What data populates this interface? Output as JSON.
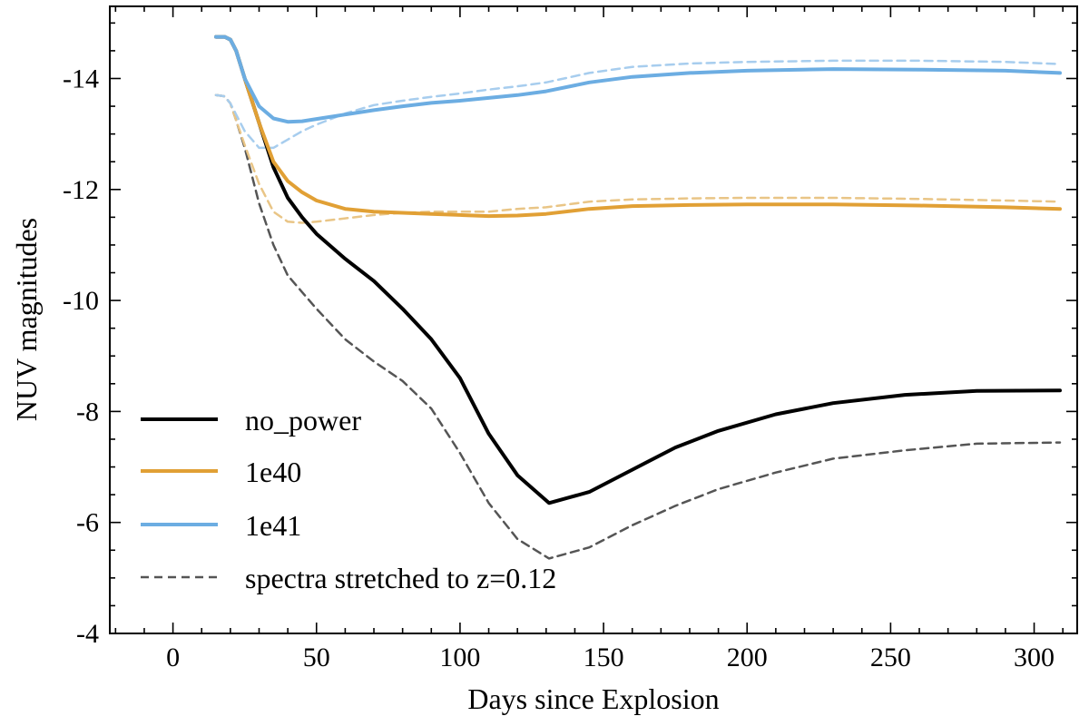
{
  "chart_data": {
    "type": "line",
    "title": "",
    "xlabel": "Days since Explosion",
    "ylabel": "NUV magnitudes",
    "xlim": [
      -22,
      315
    ],
    "ylim": [
      -4,
      -15.3
    ],
    "xticks": [
      0,
      50,
      100,
      150,
      200,
      250,
      300
    ],
    "yticks": [
      -14,
      -12,
      -10,
      -8,
      -6,
      -4
    ],
    "x_minor_step": 10,
    "y_minor_step": 0.5,
    "grid": false,
    "legend": {
      "placement": "bottom-left",
      "entries": [
        {
          "label": "no_power",
          "color": "#000000",
          "style": "solid"
        },
        {
          "label": "1e40",
          "color": "#E1A035",
          "style": "solid"
        },
        {
          "label": "1e41",
          "color": "#6CADE2",
          "style": "solid"
        },
        {
          "label": "spectra stretched to z=0.12",
          "color": "#555555",
          "style": "dashed"
        }
      ]
    },
    "series": [
      {
        "name": "no_power",
        "color": "#000000",
        "style": "solid",
        "x": [
          15,
          18,
          20,
          22,
          25,
          30,
          35,
          40,
          45,
          50,
          60,
          70,
          80,
          90,
          100,
          110,
          120,
          131,
          138,
          145,
          160,
          175,
          190,
          210,
          230,
          255,
          280,
          309
        ],
        "y": [
          -14.75,
          -14.75,
          -14.7,
          -14.5,
          -14.0,
          -13.2,
          -12.4,
          -11.85,
          -11.5,
          -11.2,
          -10.75,
          -10.35,
          -9.85,
          -9.3,
          -8.6,
          -7.6,
          -6.85,
          -6.35,
          -6.45,
          -6.55,
          -6.95,
          -7.35,
          -7.65,
          -7.95,
          -8.15,
          -8.3,
          -8.37,
          -8.38
        ]
      },
      {
        "name": "1e40",
        "color": "#E1A035",
        "style": "solid",
        "x": [
          15,
          18,
          20,
          22,
          25,
          30,
          35,
          40,
          45,
          50,
          60,
          70,
          80,
          90,
          100,
          110,
          120,
          130,
          145,
          160,
          180,
          200,
          230,
          260,
          290,
          309
        ],
        "y": [
          -14.75,
          -14.75,
          -14.7,
          -14.5,
          -14.0,
          -13.2,
          -12.5,
          -12.15,
          -11.95,
          -11.8,
          -11.65,
          -11.6,
          -11.58,
          -11.56,
          -11.54,
          -11.52,
          -11.53,
          -11.56,
          -11.65,
          -11.7,
          -11.72,
          -11.73,
          -11.73,
          -11.71,
          -11.68,
          -11.65
        ]
      },
      {
        "name": "1e41",
        "color": "#6CADE2",
        "style": "solid",
        "x": [
          15,
          18,
          20,
          22,
          25,
          30,
          35,
          40,
          45,
          50,
          60,
          70,
          80,
          90,
          100,
          110,
          120,
          130,
          145,
          160,
          180,
          200,
          230,
          260,
          290,
          309
        ],
        "y": [
          -14.75,
          -14.75,
          -14.7,
          -14.5,
          -14.0,
          -13.5,
          -13.28,
          -13.22,
          -13.23,
          -13.27,
          -13.35,
          -13.43,
          -13.5,
          -13.56,
          -13.6,
          -13.65,
          -13.7,
          -13.77,
          -13.93,
          -14.03,
          -14.1,
          -14.14,
          -14.17,
          -14.16,
          -14.14,
          -14.1
        ]
      },
      {
        "name": "no_power spectra stretched to z=0.12",
        "color": "#555555",
        "style": "dashed",
        "x": [
          15,
          18,
          20,
          22,
          25,
          30,
          35,
          40,
          45,
          50,
          60,
          70,
          80,
          90,
          100,
          110,
          120,
          131,
          145,
          160,
          175,
          190,
          210,
          230,
          255,
          280,
          309
        ],
        "y": [
          -13.7,
          -13.68,
          -13.55,
          -13.25,
          -12.75,
          -11.75,
          -11.0,
          -10.45,
          -10.15,
          -9.85,
          -9.3,
          -8.9,
          -8.55,
          -8.05,
          -7.25,
          -6.35,
          -5.7,
          -5.35,
          -5.55,
          -5.95,
          -6.3,
          -6.6,
          -6.9,
          -7.15,
          -7.3,
          -7.42,
          -7.44
        ]
      },
      {
        "name": "1e40 spectra stretched to z=0.12",
        "color": "#E9C586",
        "style": "dashed",
        "x": [
          15,
          18,
          20,
          22,
          25,
          30,
          35,
          40,
          45,
          50,
          60,
          70,
          80,
          90,
          100,
          110,
          120,
          130,
          145,
          160,
          180,
          200,
          230,
          260,
          290,
          309
        ],
        "y": [
          -13.7,
          -13.68,
          -13.55,
          -13.25,
          -12.8,
          -12.1,
          -11.6,
          -11.42,
          -11.4,
          -11.42,
          -11.48,
          -11.54,
          -11.58,
          -11.6,
          -11.6,
          -11.6,
          -11.65,
          -11.68,
          -11.78,
          -11.82,
          -11.84,
          -11.85,
          -11.85,
          -11.83,
          -11.8,
          -11.78
        ]
      },
      {
        "name": "1e41 spectra stretched to z=0.12",
        "color": "#A7CDEE",
        "style": "dashed",
        "x": [
          15,
          18,
          20,
          22,
          25,
          30,
          35,
          40,
          45,
          50,
          60,
          70,
          80,
          90,
          100,
          110,
          120,
          130,
          145,
          160,
          180,
          200,
          230,
          260,
          290,
          309
        ],
        "y": [
          -13.7,
          -13.68,
          -13.55,
          -13.35,
          -13.05,
          -12.75,
          -12.75,
          -12.9,
          -13.05,
          -13.17,
          -13.37,
          -13.52,
          -13.6,
          -13.67,
          -13.73,
          -13.8,
          -13.86,
          -13.93,
          -14.1,
          -14.21,
          -14.27,
          -14.3,
          -14.32,
          -14.32,
          -14.3,
          -14.26
        ]
      }
    ]
  }
}
